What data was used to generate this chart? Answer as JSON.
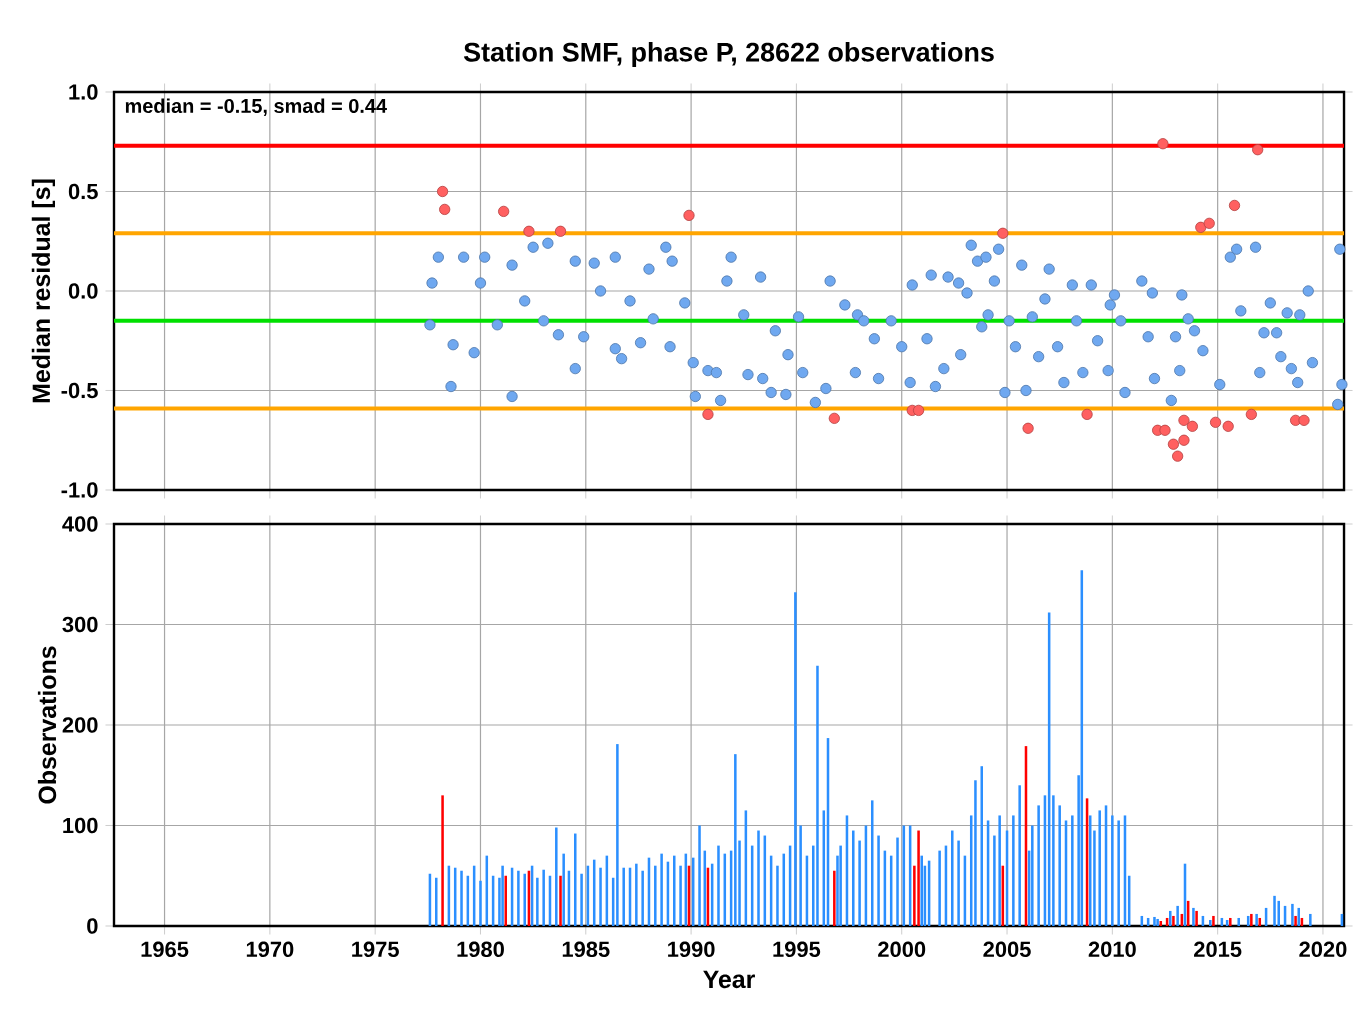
{
  "chart_data": [
    {
      "type": "scatter",
      "title": "Station SMF, phase P, 28622 observations",
      "ylabel": "Median residual [s]",
      "annotations": [
        "median = -0.15, smad = 0.44"
      ],
      "series": [
        {
          "color": "#6fa8f0",
          "x": [
            1977.6,
            1977.7,
            1978.0,
            1978.6,
            1978.7,
            1979.2,
            1979.7,
            1980.0,
            1980.2,
            1980.8,
            1981.5,
            1981.5,
            1982.1,
            1982.5,
            1983.2,
            1983.0,
            1983.7,
            1984.5,
            1984.5,
            1984.9,
            1985.4,
            1985.7,
            1986.4,
            1986.4,
            1986.7,
            1987.1,
            1987.6,
            1988.0,
            1988.2,
            1988.8,
            1989.0,
            1989.1,
            1989.7,
            1990.1,
            1990.2,
            1990.8,
            1991.2,
            1991.4,
            1991.9,
            1991.7,
            1992.5,
            1992.7,
            1993.3,
            1993.4,
            1993.8,
            1994.0,
            1994.5,
            1994.6,
            1995.1,
            1995.3,
            1995.9,
            1996.6,
            1996.4,
            1997.3,
            1997.9,
            1997.8,
            1998.7,
            1998.2,
            1998.9,
            1999.5,
            2000.0,
            2000.5,
            2000.4,
            2001.2,
            2001.6,
            2001.4,
            2002.0,
            2002.2,
            2002.7,
            2002.8,
            2003.1,
            2003.3,
            2003.6,
            2003.8,
            2004.0,
            2004.1,
            2004.4,
            2004.6,
            2004.9,
            2005.1,
            2005.4,
            2005.7,
            2005.9,
            2006.2,
            2006.5,
            2006.8,
            2007.0,
            2007.4,
            2007.7,
            2008.1,
            2008.3,
            2008.6,
            2009.0,
            2009.3,
            2009.8,
            2009.9,
            2010.1,
            2010.4,
            2010.6,
            2011.4,
            2011.7,
            2011.9,
            2012.0,
            2012.8,
            2013.0,
            2013.2,
            2013.3,
            2013.6,
            2013.9,
            2014.3,
            2015.1,
            2015.6,
            2015.9,
            2016.1,
            2016.8,
            2017.0,
            2017.2,
            2017.5,
            2017.8,
            2018.0,
            2018.3,
            2018.5,
            2018.8,
            2018.9,
            2019.3,
            2019.5,
            2020.7,
            2020.8,
            2020.9
          ],
          "values": [
            -0.17,
            0.04,
            0.17,
            -0.48,
            -0.27,
            0.17,
            -0.31,
            0.04,
            0.17,
            -0.17,
            -0.53,
            0.13,
            -0.05,
            0.22,
            0.24,
            -0.15,
            -0.22,
            0.15,
            -0.39,
            -0.23,
            0.14,
            0.0,
            0.17,
            -0.29,
            -0.34,
            -0.05,
            -0.26,
            0.11,
            -0.14,
            0.22,
            -0.28,
            0.15,
            -0.06,
            -0.36,
            -0.53,
            -0.4,
            -0.41,
            -0.55,
            0.17,
            0.05,
            -0.12,
            -0.42,
            0.07,
            -0.44,
            -0.51,
            -0.2,
            -0.52,
            -0.32,
            -0.13,
            -0.41,
            -0.56,
            0.05,
            -0.49,
            -0.07,
            -0.12,
            -0.41,
            -0.24,
            -0.15,
            -0.44,
            -0.15,
            -0.28,
            0.03,
            -0.46,
            -0.24,
            -0.48,
            0.08,
            -0.39,
            0.07,
            0.04,
            -0.32,
            -0.01,
            0.23,
            0.15,
            -0.18,
            0.17,
            -0.12,
            0.05,
            0.21,
            -0.51,
            -0.15,
            -0.28,
            0.13,
            -0.5,
            -0.13,
            -0.33,
            -0.04,
            0.11,
            -0.28,
            -0.46,
            0.03,
            -0.15,
            -0.41,
            0.03,
            -0.25,
            -0.4,
            -0.07,
            -0.02,
            -0.15,
            -0.51,
            0.05,
            -0.23,
            -0.01,
            -0.44,
            -0.55,
            -0.23,
            -0.4,
            -0.02,
            -0.14,
            -0.2,
            -0.3,
            -0.47,
            0.17,
            0.21,
            -0.1,
            0.22,
            -0.41,
            -0.21,
            -0.06,
            -0.21,
            -0.33,
            -0.11,
            -0.39,
            -0.46,
            -0.12,
            0.0,
            -0.36,
            -0.57,
            0.21,
            -0.47
          ]
        },
        {
          "color": "#ff6060",
          "x": [
            1978.2,
            1978.3,
            1981.1,
            1982.3,
            1983.8,
            1989.9,
            1990.8,
            1996.8,
            2000.5,
            2000.8,
            2004.8,
            2006.0,
            2008.8,
            2012.4,
            2012.15,
            2012.5,
            2012.9,
            2013.1,
            2013.4,
            2013.4,
            2013.8,
            2014.2,
            2014.6,
            2014.9,
            2015.5,
            2015.8,
            2016.6,
            2016.9,
            2018.7,
            2019.1
          ],
          "values": [
            0.5,
            0.41,
            0.4,
            0.3,
            0.3,
            0.38,
            -0.62,
            -0.64,
            -0.6,
            -0.6,
            0.29,
            -0.69,
            -0.62,
            0.74,
            -0.7,
            -0.7,
            -0.77,
            -0.83,
            -0.75,
            -0.65,
            -0.68,
            0.32,
            0.34,
            -0.66,
            -0.68,
            0.43,
            -0.62,
            0.71,
            -0.65,
            -0.65
          ]
        }
      ],
      "xlim": [
        1962.6,
        2021.0
      ],
      "ylim": [
        -1,
        1
      ],
      "xticks": [
        1965,
        1970,
        1975,
        1980,
        1985,
        1990,
        1995,
        2000,
        2005,
        2010,
        2015,
        2020
      ],
      "yticks": [
        {
          "value": -1,
          "label": "-1.0"
        },
        {
          "value": -0.5,
          "label": "-0.5"
        },
        {
          "value": 0,
          "label": "0.0"
        },
        {
          "value": 0.5,
          "label": "0.5"
        },
        {
          "value": 1,
          "label": "1.0"
        }
      ],
      "tick_labels": "y",
      "grid": true,
      "marker": "circle",
      "ref_lines": [
        {
          "axis": "y",
          "value": 0.73,
          "color": "#ff0000"
        },
        {
          "axis": "y",
          "value": 0.29,
          "color": "#ffa500"
        },
        {
          "axis": "y",
          "value": -0.15,
          "color": "#00e000"
        },
        {
          "axis": "y",
          "value": -0.59,
          "color": "#ffa500"
        }
      ]
    },
    {
      "type": "bar",
      "xlabel": "Year",
      "ylabel": "Observations",
      "series": [
        {
          "color": "#2b8fff",
          "x": [
            1977.6,
            1977.9,
            1978.5,
            1978.8,
            1979.1,
            1979.4,
            1979.7,
            1980.0,
            1980.3,
            1980.6,
            1980.9,
            1981.05,
            1981.5,
            1981.8,
            1982.1,
            1982.45,
            1982.7,
            1983.0,
            1983.3,
            1983.6,
            1983.95,
            1984.2,
            1984.5,
            1984.8,
            1985.1,
            1985.4,
            1985.7,
            1986.0,
            1986.3,
            1986.5,
            1986.8,
            1987.1,
            1987.4,
            1987.7,
            1988.0,
            1988.3,
            1988.6,
            1988.9,
            1989.2,
            1989.5,
            1989.75,
            1990.1,
            1990.4,
            1990.65,
            1991.0,
            1991.3,
            1991.6,
            1991.9,
            1992.1,
            1992.3,
            1992.6,
            1992.9,
            1993.2,
            1993.5,
            1993.8,
            1994.1,
            1994.4,
            1994.7,
            1994.95,
            1995.2,
            1995.5,
            1995.8,
            1996.0,
            1996.3,
            1996.5,
            1996.95,
            1997.1,
            1997.4,
            1997.7,
            1998.0,
            1998.3,
            1998.6,
            1998.9,
            1999.2,
            1999.5,
            1999.8,
            2000.1,
            2000.4,
            2000.95,
            2001.1,
            2001.3,
            2001.8,
            2002.1,
            2002.4,
            2002.7,
            2003.0,
            2003.3,
            2003.5,
            2003.8,
            2004.1,
            2004.4,
            2004.65,
            2005.0,
            2005.3,
            2005.6,
            2006.05,
            2006.2,
            2006.5,
            2006.8,
            2007.0,
            2007.2,
            2007.5,
            2007.8,
            2008.1,
            2008.4,
            2008.55,
            2008.95,
            2009.15,
            2009.4,
            2009.7,
            2010.0,
            2010.3,
            2010.6,
            2010.8,
            2011.4,
            2011.7,
            2012.0,
            2012.15,
            2012.75,
            2013.1,
            2013.45,
            2013.85,
            2014.3,
            2014.65,
            2015.2,
            2015.45,
            2016.0,
            2016.45,
            2016.85,
            2017.3,
            2017.7,
            2017.9,
            2018.2,
            2018.55,
            2018.85,
            2019.4,
            2020.9
          ],
          "values": [
            52,
            48,
            60,
            58,
            55,
            50,
            60,
            45,
            70,
            50,
            48,
            60,
            58,
            55,
            52,
            60,
            48,
            56,
            50,
            98,
            72,
            55,
            92,
            52,
            60,
            66,
            58,
            70,
            48,
            181,
            58,
            58,
            62,
            55,
            68,
            60,
            72,
            64,
            70,
            60,
            72,
            68,
            100,
            75,
            62,
            80,
            72,
            75,
            171,
            85,
            115,
            80,
            95,
            90,
            70,
            60,
            72,
            80,
            332,
            100,
            70,
            80,
            259,
            115,
            187,
            70,
            80,
            110,
            95,
            85,
            100,
            125,
            90,
            75,
            70,
            88,
            100,
            100,
            70,
            60,
            65,
            75,
            80,
            95,
            85,
            70,
            110,
            145,
            159,
            105,
            90,
            110,
            95,
            110,
            140,
            75,
            100,
            120,
            130,
            312,
            130,
            120,
            105,
            110,
            150,
            354,
            110,
            95,
            115,
            120,
            110,
            105,
            110,
            50,
            10,
            8,
            9,
            7,
            15,
            20,
            62,
            18,
            10,
            6,
            8,
            6,
            8,
            10,
            12,
            18,
            30,
            25,
            20,
            22,
            18,
            12,
            12
          ]
        },
        {
          "color": "#ff0000",
          "x": [
            1978.2,
            1981.2,
            1982.3,
            1983.8,
            1989.9,
            1990.8,
            1996.8,
            2000.6,
            2000.8,
            2004.8,
            2005.9,
            2008.8,
            2012.3,
            2012.6,
            2012.9,
            2013.3,
            2013.6,
            2014.0,
            2014.8,
            2015.6,
            2016.6,
            2017.0,
            2018.7,
            2019.0
          ],
          "values": [
            130,
            50,
            55,
            50,
            60,
            58,
            55,
            60,
            95,
            60,
            179,
            127,
            5,
            8,
            10,
            12,
            25,
            15,
            10,
            8,
            12,
            8,
            10,
            8
          ]
        }
      ],
      "xlim": [
        1962.6,
        2021.0
      ],
      "ylim": [
        0,
        400
      ],
      "xticks": [
        1965,
        1970,
        1975,
        1980,
        1985,
        1990,
        1995,
        2000,
        2005,
        2010,
        2015,
        2020
      ],
      "yticks": [
        0,
        100,
        200,
        300,
        400
      ],
      "grid": true
    }
  ]
}
